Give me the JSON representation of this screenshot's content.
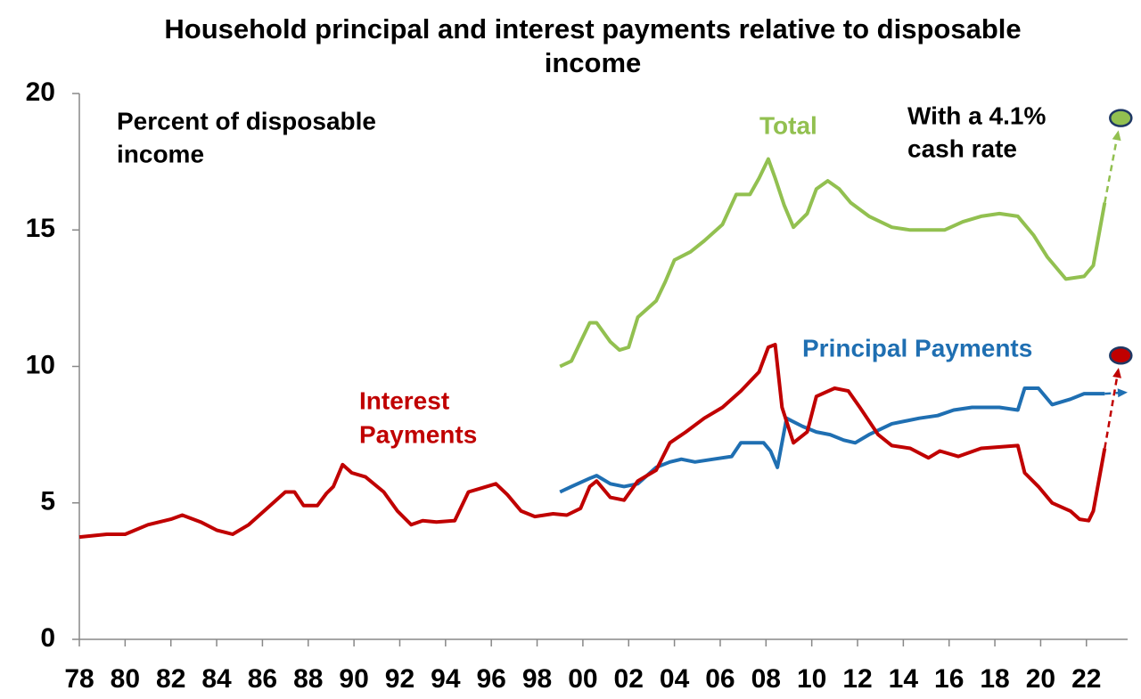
{
  "chart_data": {
    "type": "line",
    "title": "Household principal and interest payments relative to disposable income",
    "annotations": [
      {
        "lines": [
          "Percent of disposable",
          "income"
        ]
      },
      {
        "lines": [
          "With a 4.1%",
          "cash rate"
        ]
      }
    ],
    "xlim": [
      1978,
      2023.8
    ],
    "ylim": [
      0,
      20
    ],
    "yticks": [
      0,
      5,
      10,
      15,
      20
    ],
    "xticks": [
      {
        "value": 1978,
        "label": "78"
      },
      {
        "value": 1980,
        "label": "80"
      },
      {
        "value": 1982,
        "label": "82"
      },
      {
        "value": 1984,
        "label": "84"
      },
      {
        "value": 1986,
        "label": "86"
      },
      {
        "value": 1988,
        "label": "88"
      },
      {
        "value": 1990,
        "label": "90"
      },
      {
        "value": 1992,
        "label": "92"
      },
      {
        "value": 1994,
        "label": "94"
      },
      {
        "value": 1996,
        "label": "96"
      },
      {
        "value": 1998,
        "label": "98"
      },
      {
        "value": 2000,
        "label": "00"
      },
      {
        "value": 2002,
        "label": "02"
      },
      {
        "value": 2004,
        "label": "04"
      },
      {
        "value": 2006,
        "label": "06"
      },
      {
        "value": 2008,
        "label": "08"
      },
      {
        "value": 2010,
        "label": "10"
      },
      {
        "value": 2012,
        "label": "12"
      },
      {
        "value": 2014,
        "label": "14"
      },
      {
        "value": 2016,
        "label": "16"
      },
      {
        "value": 2018,
        "label": "18"
      },
      {
        "value": 2020,
        "label": "20"
      },
      {
        "value": 2022,
        "label": "22"
      }
    ],
    "grid": false,
    "series": [
      {
        "label": [
          "Total"
        ],
        "color": "#92c050",
        "x": [
          1999.0,
          1999.5,
          1999.9,
          2000.3,
          2000.6,
          2001.2,
          2001.6,
          2002.0,
          2002.4,
          2003.2,
          2003.6,
          2004.0,
          2004.7,
          2005.3,
          2006.1,
          2006.7,
          2007.3,
          2007.7,
          2008.1,
          2008.4,
          2008.8,
          2009.2,
          2009.8,
          2010.2,
          2010.7,
          2011.2,
          2011.7,
          2012.5,
          2013.5,
          2014.3,
          2015.8,
          2016.6,
          2017.4,
          2018.2,
          2019.0,
          2019.7,
          2020.3,
          2021.1,
          2021.9,
          2022.3,
          2022.8
        ],
        "values": [
          10.0,
          10.2,
          10.9,
          11.6,
          11.6,
          10.9,
          10.6,
          10.7,
          11.8,
          12.4,
          13.1,
          13.9,
          14.2,
          14.6,
          15.2,
          16.3,
          16.3,
          16.9,
          17.6,
          16.9,
          15.9,
          15.1,
          15.6,
          16.5,
          16.8,
          16.5,
          16.0,
          15.5,
          15.1,
          15.0,
          15.0,
          15.3,
          15.5,
          15.6,
          15.5,
          14.8,
          14.0,
          13.2,
          13.3,
          13.7,
          16.0
        ],
        "projection": {
          "x": [
            2022.8,
            2023.5
          ],
          "values": [
            16.0,
            19.1
          ],
          "endpoint": true
        }
      },
      {
        "label": [
          "Principal Payments"
        ],
        "color": "#1f6fb2",
        "x": [
          1999.0,
          1999.5,
          2000.3,
          2000.6,
          2001.2,
          2001.8,
          2002.4,
          2003.2,
          2003.8,
          2004.3,
          2004.9,
          2005.7,
          2006.5,
          2006.9,
          2007.5,
          2007.9,
          2008.2,
          2008.5,
          2008.9,
          2009.6,
          2010.2,
          2010.8,
          2011.4,
          2011.9,
          2012.5,
          2013.5,
          2014.7,
          2015.5,
          2016.2,
          2017.0,
          2018.2,
          2019.0,
          2019.3,
          2019.9,
          2020.5,
          2021.3,
          2021.9,
          2022.8
        ],
        "values": [
          5.4,
          5.6,
          5.9,
          6.0,
          5.7,
          5.6,
          5.7,
          6.3,
          6.5,
          6.6,
          6.5,
          6.6,
          6.7,
          7.2,
          7.2,
          7.2,
          6.9,
          6.3,
          8.1,
          7.8,
          7.6,
          7.5,
          7.3,
          7.2,
          7.5,
          7.9,
          8.1,
          8.2,
          8.4,
          8.5,
          8.5,
          8.4,
          9.2,
          9.2,
          8.6,
          8.8,
          9.0,
          9.0
        ],
        "projection": {
          "x": [
            2022.8,
            2023.8
          ],
          "values": [
            9.0,
            9.05
          ],
          "endpoint": false
        }
      },
      {
        "label": [
          "Interest",
          "Payments"
        ],
        "color": "#c00000",
        "x": [
          1978.0,
          1979.2,
          1980.0,
          1981.0,
          1982.0,
          1982.5,
          1983.3,
          1984.0,
          1984.7,
          1985.4,
          1986.2,
          1987.0,
          1987.4,
          1987.8,
          1988.4,
          1988.8,
          1989.1,
          1989.5,
          1989.9,
          1990.5,
          1991.3,
          1991.9,
          1992.5,
          1993.0,
          1993.6,
          1994.4,
          1995.0,
          1995.6,
          1996.2,
          1996.7,
          1997.3,
          1997.9,
          1998.7,
          1999.3,
          1999.9,
          2000.3,
          2000.6,
          2001.2,
          2001.8,
          2002.4,
          2003.2,
          2003.8,
          2004.5,
          2005.3,
          2006.1,
          2006.9,
          2007.7,
          2008.1,
          2008.4,
          2008.7,
          2009.2,
          2009.8,
          2010.2,
          2011.0,
          2011.6,
          2012.1,
          2012.9,
          2013.5,
          2014.3,
          2015.1,
          2015.6,
          2016.4,
          2017.4,
          2019.0,
          2019.3,
          2019.9,
          2020.5,
          2021.3,
          2021.7,
          2022.1,
          2022.3,
          2022.8
        ],
        "values": [
          3.75,
          3.85,
          3.85,
          4.2,
          4.4,
          4.55,
          4.3,
          4.0,
          3.85,
          4.2,
          4.8,
          5.4,
          5.4,
          4.9,
          4.9,
          5.35,
          5.6,
          6.4,
          6.1,
          5.95,
          5.4,
          4.7,
          4.2,
          4.35,
          4.3,
          4.35,
          5.4,
          5.55,
          5.7,
          5.3,
          4.7,
          4.5,
          4.6,
          4.55,
          4.8,
          5.6,
          5.8,
          5.2,
          5.1,
          5.8,
          6.2,
          7.2,
          7.6,
          8.1,
          8.5,
          9.1,
          9.8,
          10.7,
          10.8,
          8.5,
          7.2,
          7.6,
          8.9,
          9.2,
          9.1,
          8.5,
          7.5,
          7.1,
          7.0,
          6.65,
          6.9,
          6.7,
          7.0,
          7.1,
          6.1,
          5.6,
          5.0,
          4.7,
          4.4,
          4.35,
          4.7,
          7.0
        ],
        "projection": {
          "x": [
            2022.8,
            2023.5
          ],
          "values": [
            7.0,
            10.4
          ],
          "endpoint": true
        }
      }
    ]
  }
}
